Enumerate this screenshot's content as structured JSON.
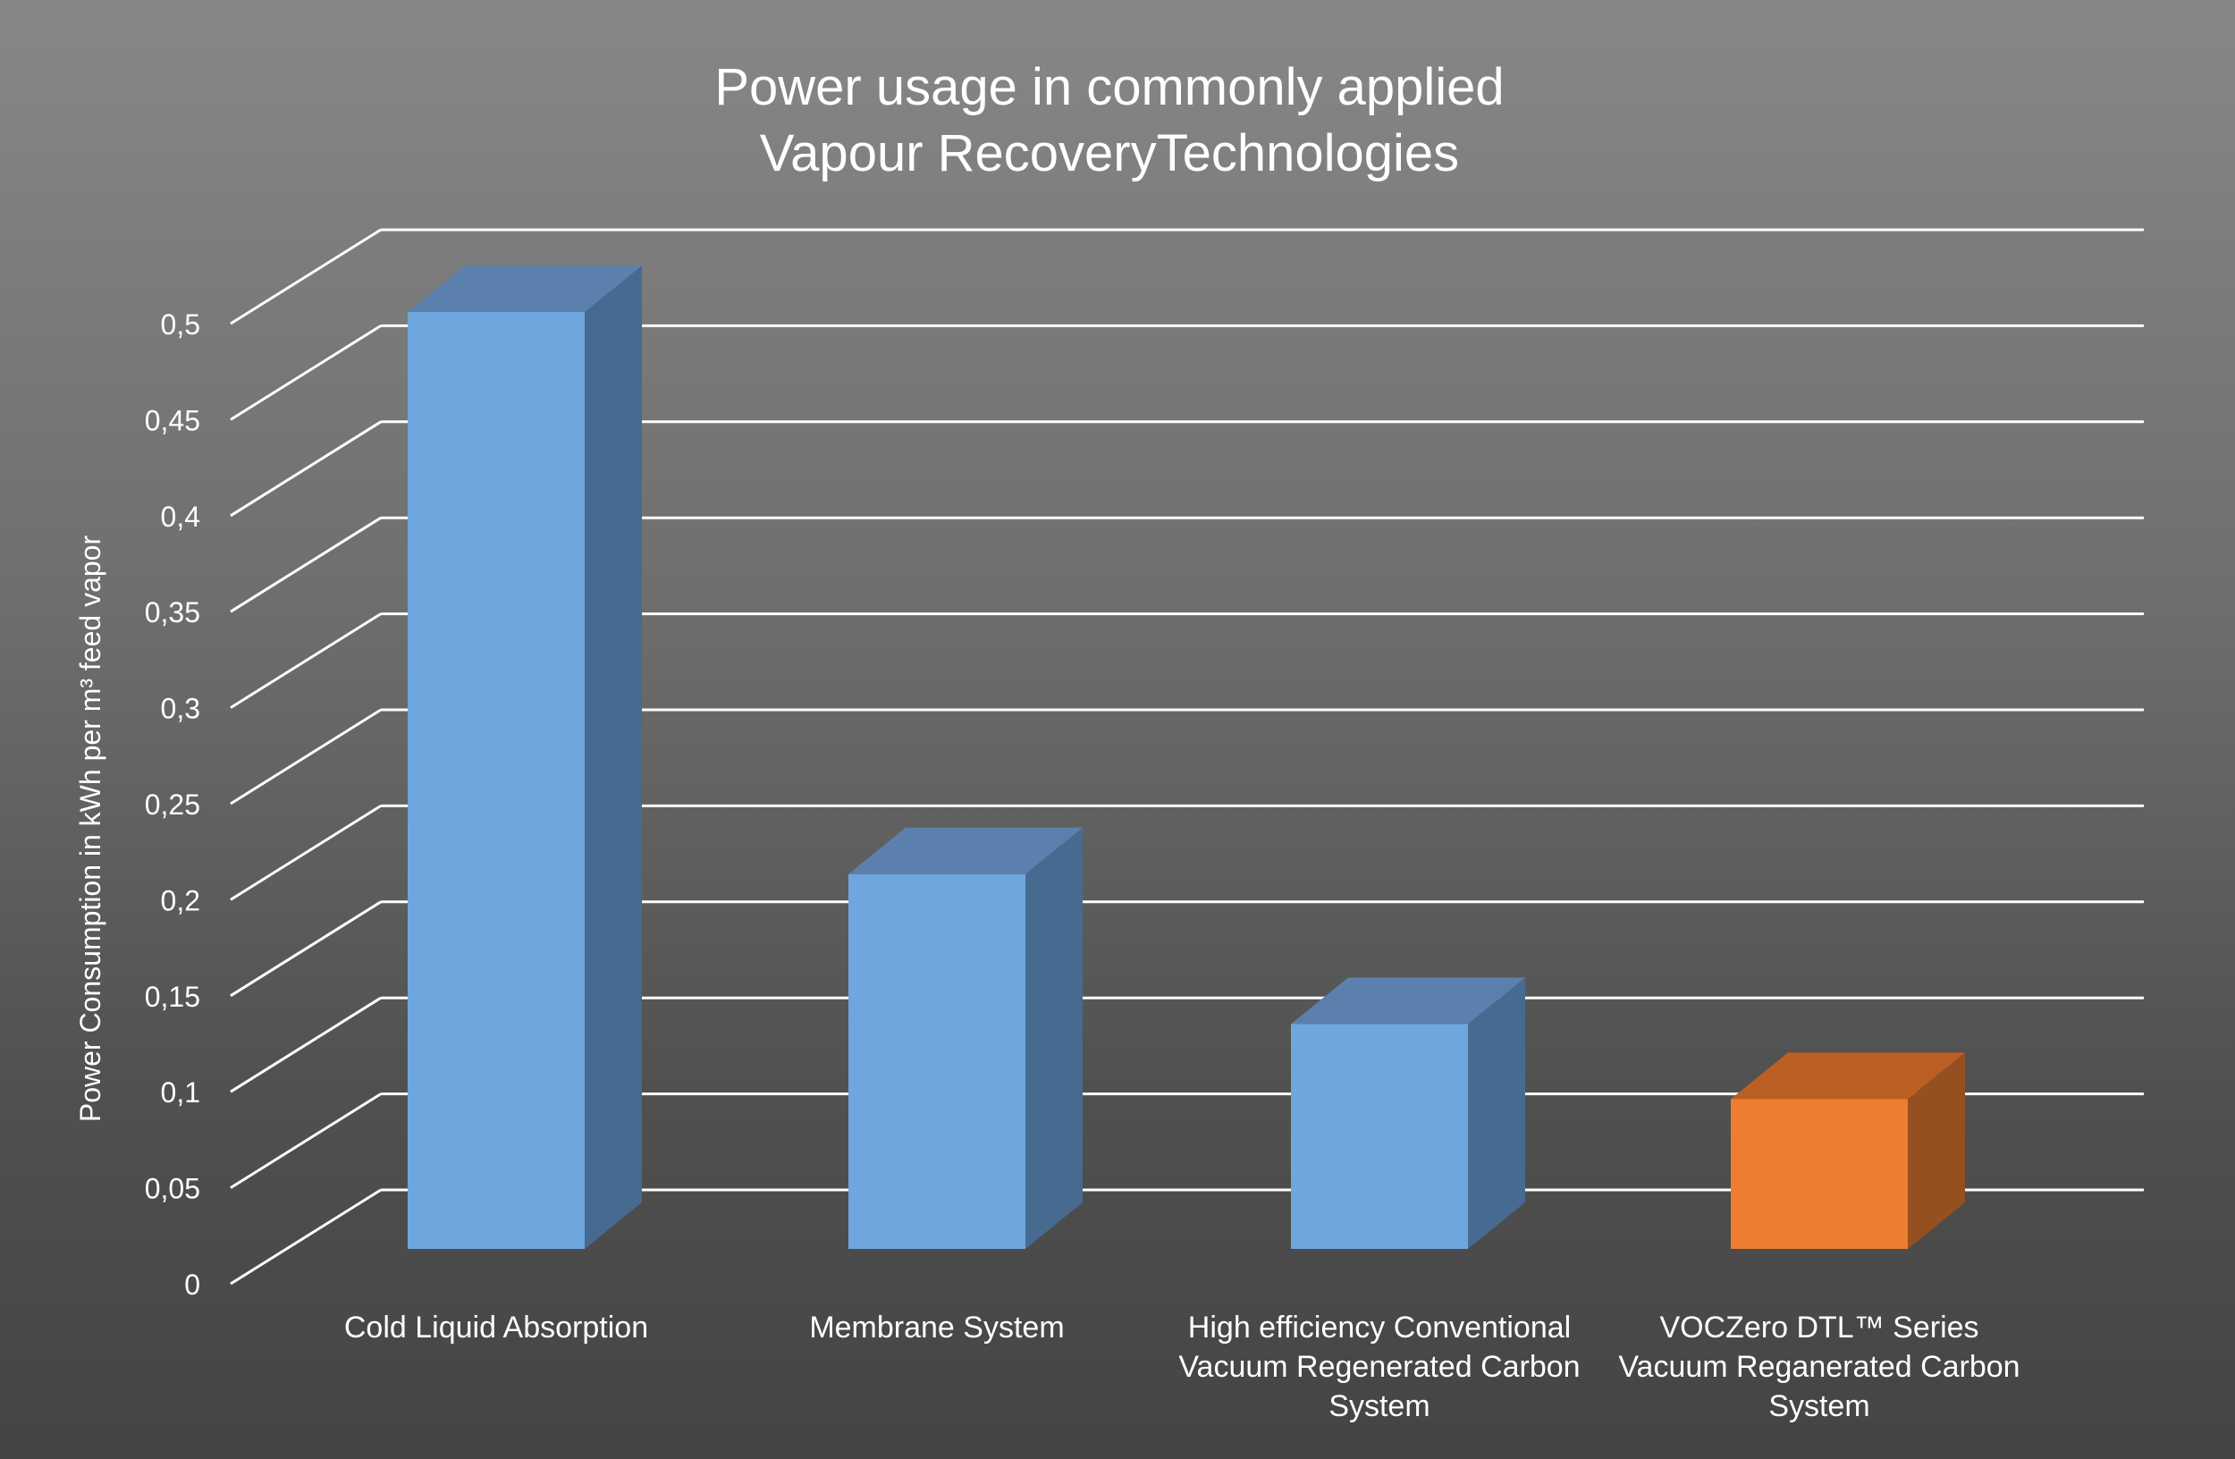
{
  "chart_data": {
    "type": "bar",
    "title_lines": [
      "Power usage in commonly applied",
      "Vapour RecoveryTechnologies"
    ],
    "xlabel": "",
    "ylabel": "Power Consumption in kWh per m³ feed vapor",
    "ylim": [
      0,
      0.5
    ],
    "y_ticks": [
      "0",
      "0,05",
      "0,1",
      "0,15",
      "0,2",
      "0,25",
      "0,3",
      "0,35",
      "0,4",
      "0,45",
      "0,5"
    ],
    "grid": true,
    "categories": [
      [
        "Cold Liquid Absorption"
      ],
      [
        "Membrane System"
      ],
      [
        "High efficiency Conventional",
        "Vacuum Regenerated Carbon",
        "System"
      ],
      [
        "VOCZero DTL™ Series",
        "Vacuum Reganerated Carbon",
        "System"
      ]
    ],
    "values": [
      0.5,
      0.2,
      0.12,
      0.08
    ],
    "bar_colors": [
      "#6fa6dd",
      "#6fa6dd",
      "#6fa6dd",
      "#ed7d31"
    ],
    "bar_top_colors": [
      "#5b80ad",
      "#5b80ad",
      "#5b80ad",
      "#bb5f24"
    ],
    "bar_side_colors": [
      "#476a90",
      "#476a90",
      "#476a90",
      "#95501f"
    ]
  }
}
